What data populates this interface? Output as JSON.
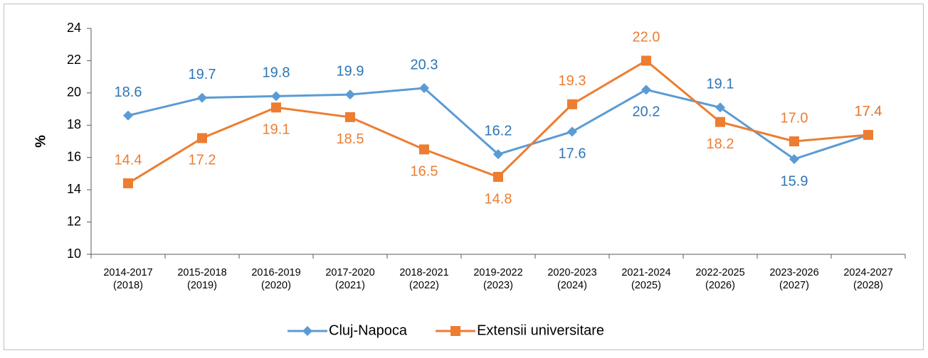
{
  "chart_data": {
    "type": "line",
    "categories": [
      "2014-2017\n(2018)",
      "2015-2018\n(2019)",
      "2016-2019\n(2020)",
      "2017-2020\n(2021)",
      "2018-2021\n(2022)",
      "2019-2022\n(2023)",
      "2020-2023\n(2024)",
      "2021-2024\n(2025)",
      "2022-2025\n(2026)",
      "2023-2026\n(2027)",
      "2024-2027\n(2028)"
    ],
    "series": [
      {
        "name": "Cluj-Napoca",
        "color": "#5b9bd5",
        "marker": "diamond",
        "values": [
          18.6,
          19.7,
          19.8,
          19.9,
          20.3,
          16.2,
          17.6,
          20.2,
          19.1,
          15.9,
          17.4
        ],
        "value_labels": [
          "18.6",
          "19.7",
          "19.8",
          "19.9",
          "20.3",
          "16.2",
          "17.6",
          "20.2",
          "19.1",
          "15.9",
          "17.4"
        ]
      },
      {
        "name": "Extensii universitare",
        "color": "#ed7d31",
        "marker": "square",
        "values": [
          14.4,
          17.2,
          19.1,
          18.5,
          16.5,
          14.8,
          19.3,
          22.0,
          18.2,
          17.0,
          17.4
        ],
        "value_labels": [
          "14.4",
          "17.2",
          "19.1",
          "18.5",
          "16.5",
          "14.8",
          "19.3",
          "22.0",
          "18.2",
          "17.0",
          "17.4"
        ]
      }
    ],
    "ylabel": "%",
    "ylim": [
      10,
      24
    ],
    "yticks": [
      10,
      12,
      14,
      16,
      18,
      20,
      22,
      24
    ],
    "legend": "bottom"
  }
}
